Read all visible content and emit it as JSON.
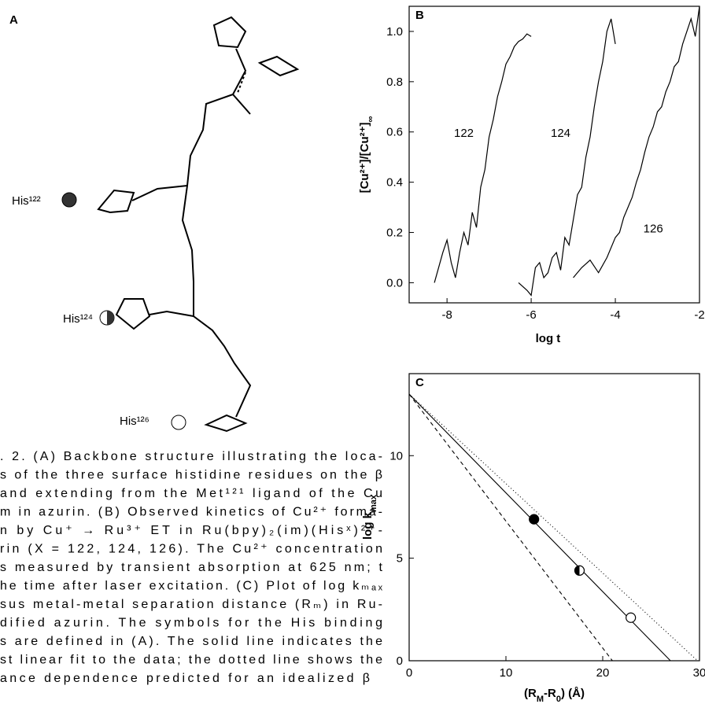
{
  "panel_a": {
    "label": "A",
    "residues": [
      "His¹²²",
      "His¹²⁴",
      "His¹²⁶"
    ]
  },
  "caption": {
    "lines": [
      ". 2. (A) Backbone structure illustrating the loca-",
      "s of the three surface histidine residues on the β",
      "and extending from the Met¹²¹ ligand of the Cu",
      "m in azurin. (B) Observed kinetics of Cu²⁺ forma-",
      "n by Cu⁺ → Ru³⁺ ET in Ru(bpy)₂(im)(Hisˣ)²⁺-",
      "rin (X = 122, 124, 126). The Cu²⁺ concentration",
      "s measured by transient absorption at 625 nm; t",
      "he time after laser excitation. (C) Plot of log kₘₐₓ",
      "sus metal-metal separation distance (Rₘ) in Ru-",
      "dified azurin. The symbols for the His binding",
      "s are defined in (A). The solid line indicates the",
      "st linear fit to the data; the dotted line shows the",
      "ance dependence predicted for an idealized β"
    ]
  },
  "chart_data": [
    {
      "type": "line",
      "title": "B",
      "x_label": "log t",
      "y_label": "[Cu²⁺]/[Cu²⁺]",
      "y_label_sub": "∞",
      "xlim": [
        -8.9,
        -2
      ],
      "ylim": [
        -0.08,
        1.1
      ],
      "xticks": [
        -8,
        -6,
        -4,
        -2
      ],
      "yticks": [
        {
          "value": 0,
          "label": "0.0"
        },
        0.2,
        0.4,
        0.6,
        0.8,
        {
          "value": 1,
          "label": "1.0"
        }
      ],
      "series": [
        {
          "name": "122",
          "color": "#000000",
          "x": [
            -8.3,
            -8.1,
            -8.0,
            -7.9,
            -7.8,
            -7.7,
            -7.6,
            -7.5,
            -7.4,
            -7.3,
            -7.2,
            -7.1,
            -7.0,
            -6.9,
            -6.8,
            -6.7,
            -6.6,
            -6.5,
            -6.4,
            -6.3,
            -6.2,
            -6.1,
            -6.0
          ],
          "values": [
            0,
            0.12,
            0.17,
            0.08,
            0.02,
            0.12,
            0.2,
            0.15,
            0.28,
            0.22,
            0.38,
            0.45,
            0.58,
            0.65,
            0.74,
            0.8,
            0.87,
            0.9,
            0.94,
            0.96,
            0.97,
            0.99,
            0.98
          ]
        },
        {
          "name": "124",
          "color": "#000000",
          "x": [
            -6.3,
            -6.1,
            -6.0,
            -5.9,
            -5.8,
            -5.7,
            -5.6,
            -5.5,
            -5.4,
            -5.3,
            -5.2,
            -5.1,
            -5.0,
            -4.9,
            -4.8,
            -4.7,
            -4.6,
            -4.5,
            -4.4,
            -4.3,
            -4.2,
            -4.1,
            -4.0
          ],
          "values": [
            0,
            -0.03,
            -0.05,
            0.06,
            0.08,
            0.02,
            0.04,
            0.1,
            0.12,
            0.05,
            0.18,
            0.15,
            0.25,
            0.35,
            0.38,
            0.5,
            0.58,
            0.7,
            0.8,
            0.88,
            1.0,
            1.05,
            0.95
          ]
        },
        {
          "name": "126",
          "color": "#000000",
          "x": [
            -5.0,
            -4.8,
            -4.6,
            -4.4,
            -4.2,
            -4.0,
            -3.9,
            -3.8,
            -3.7,
            -3.6,
            -3.5,
            -3.4,
            -3.3,
            -3.2,
            -3.1,
            -3.0,
            -2.9,
            -2.8,
            -2.7,
            -2.6,
            -2.5,
            -2.4,
            -2.3,
            -2.2,
            -2.1,
            -2.0
          ],
          "values": [
            0.02,
            0.06,
            0.09,
            0.04,
            0.1,
            0.18,
            0.2,
            0.26,
            0.3,
            0.34,
            0.4,
            0.45,
            0.52,
            0.58,
            0.62,
            0.68,
            0.7,
            0.76,
            0.8,
            0.86,
            0.88,
            0.95,
            1.0,
            1.05,
            0.98,
            1.1
          ]
        }
      ]
    },
    {
      "type": "scatter",
      "title": "C",
      "x_label": "(R",
      "x_label_sub": "M",
      "x_label_mid": "-R",
      "x_label_sub2": "0",
      "x_label_end": ") (Å)",
      "y_label": "log k",
      "y_label_sub": "max",
      "xlim": [
        0,
        30
      ],
      "ylim": [
        0,
        14
      ],
      "xticks": [
        0,
        10,
        20,
        30
      ],
      "yticks": [
        0,
        5,
        10
      ],
      "points": {
        "x": [
          12.9,
          17.6,
          22.9
        ],
        "values": [
          6.9,
          4.4,
          2.1
        ],
        "fills": [
          "full",
          "half",
          "open"
        ]
      },
      "lines": [
        {
          "style": "solid",
          "color": "#000000",
          "x": [
            0,
            27.0
          ],
          "values": [
            13,
            0
          ]
        },
        {
          "style": "dotted",
          "color": "#000000",
          "x": [
            0,
            29.8
          ],
          "values": [
            13,
            0
          ]
        },
        {
          "style": "dashed",
          "color": "#000000",
          "x": [
            0,
            21.0
          ],
          "values": [
            13,
            0
          ]
        }
      ]
    }
  ]
}
